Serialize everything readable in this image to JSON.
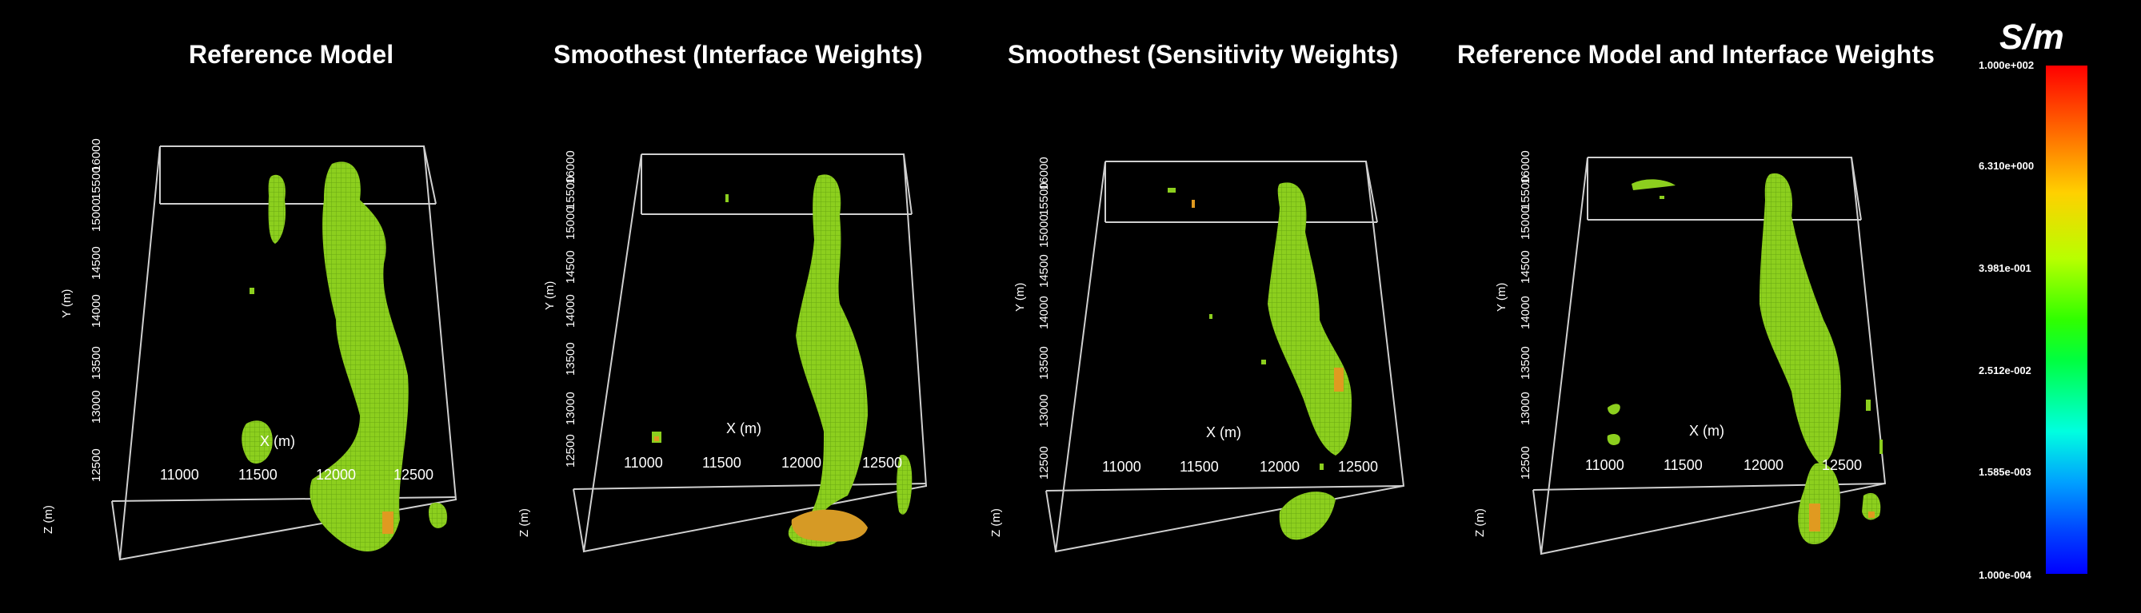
{
  "panels": [
    {
      "title": "Reference Model",
      "x_axis_label": "X (m)",
      "x_ticks": [
        "11000",
        "11500",
        "12000",
        "12500"
      ],
      "y_axis_label": "Y (m)",
      "y_ticks": [
        "12500",
        "13000",
        "13500",
        "14000",
        "14500",
        "15000",
        "15500",
        "16000"
      ],
      "z_axis_label": "Z (m)"
    },
    {
      "title": "Smoothest (Interface Weights)",
      "x_axis_label": "X (m)",
      "x_ticks": [
        "11000",
        "11500",
        "12000",
        "12500"
      ],
      "y_axis_label": "Y (m)",
      "y_ticks": [
        "12500",
        "13000",
        "13500",
        "14000",
        "14500",
        "15000",
        "15500",
        "16000"
      ],
      "z_axis_label": "Z (m)"
    },
    {
      "title": "Smoothest (Sensitivity Weights)",
      "x_axis_label": "X (m)",
      "x_ticks": [
        "11000",
        "11500",
        "12000",
        "12500"
      ],
      "y_axis_label": "Y (m)",
      "y_ticks": [
        "12500",
        "13000",
        "13500",
        "14000",
        "14500",
        "15000",
        "15500",
        "16000"
      ],
      "z_axis_label": "Z (m)"
    },
    {
      "title": "Reference Model and Interface Weights",
      "x_axis_label": "X (m)",
      "x_ticks": [
        "11000",
        "11500",
        "12000",
        "12500"
      ],
      "y_axis_label": "Y (m)",
      "y_ticks": [
        "12500",
        "13000",
        "13500",
        "14000",
        "14500",
        "15000",
        "15500",
        "16000"
      ],
      "z_axis_label": "Z (m)"
    }
  ],
  "colorbar": {
    "unit": "S/m",
    "labels": [
      "1.000e+002",
      "6.310e+000",
      "3.981e-001",
      "2.512e-002",
      "1.585e-003",
      "1.000e-004"
    ],
    "gradient": [
      "#ff0000",
      "#ff6a00",
      "#ffd000",
      "#b8ff00",
      "#30ff00",
      "#00ffe0",
      "#00a0ff",
      "#0000ff"
    ]
  },
  "colors": {
    "background": "#000000",
    "box": "#cfcfcf",
    "body": "#8ccf1e",
    "body_hot": "#e0a020"
  }
}
